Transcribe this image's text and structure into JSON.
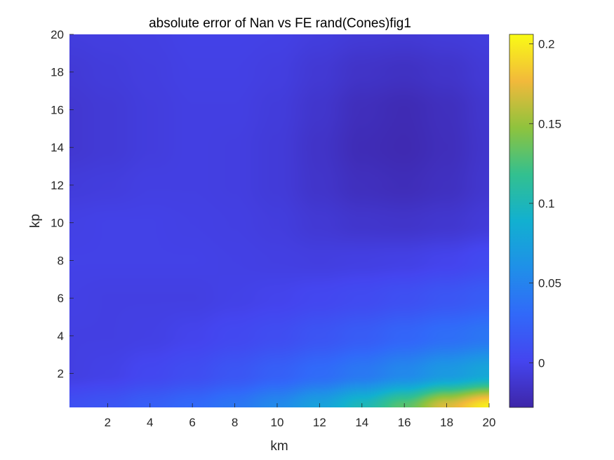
{
  "chart_data": {
    "type": "heatmap",
    "title": "absolute error of Nan vs FE rand(Cones)fig1",
    "xlabel": "km",
    "ylabel": "kp",
    "xlim": [
      0.2,
      20
    ],
    "ylim": [
      0.2,
      20
    ],
    "x_ticks": [
      "2",
      "4",
      "6",
      "8",
      "10",
      "12",
      "14",
      "16",
      "18",
      "20"
    ],
    "y_ticks": [
      "2",
      "4",
      "6",
      "8",
      "10",
      "12",
      "14",
      "16",
      "18",
      "20"
    ],
    "grid": false,
    "colormap": "parula",
    "colorbar": {
      "clim": [
        -0.028,
        0.206
      ],
      "ticks": [
        "0",
        "0.05",
        "0.1",
        "0.15",
        "0.2"
      ],
      "tick_values": [
        0,
        0.05,
        0.1,
        0.15,
        0.2
      ]
    },
    "x": [
      0.2,
      2,
      4,
      6,
      8,
      10,
      12,
      14,
      16,
      18,
      20
    ],
    "y": [
      0.2,
      2,
      4,
      6,
      8,
      10,
      12,
      14,
      16,
      18,
      20
    ],
    "z": [
      [
        0.01,
        0.014,
        0.022,
        0.03,
        0.04,
        0.055,
        0.075,
        0.1,
        0.13,
        0.17,
        0.2
      ],
      [
        -0.004,
        -0.002,
        0.003,
        0.008,
        0.015,
        0.023,
        0.032,
        0.042,
        0.054,
        0.068,
        0.08
      ],
      [
        -0.004,
        -0.004,
        -0.003,
        0.0,
        0.004,
        0.008,
        0.014,
        0.02,
        0.027,
        0.034,
        0.04
      ],
      [
        -0.003,
        -0.004,
        -0.004,
        -0.004,
        -0.002,
        0.0,
        0.003,
        0.006,
        0.01,
        0.015,
        0.02
      ],
      [
        -0.002,
        -0.002,
        -0.002,
        -0.002,
        -0.003,
        -0.004,
        -0.005,
        -0.004,
        -0.003,
        0.0,
        0.005
      ],
      [
        -0.003,
        -0.002,
        -0.002,
        -0.003,
        -0.004,
        -0.006,
        -0.01,
        -0.013,
        -0.014,
        -0.012,
        -0.008
      ],
      [
        -0.007,
        -0.006,
        -0.004,
        -0.004,
        -0.005,
        -0.008,
        -0.014,
        -0.019,
        -0.021,
        -0.018,
        -0.012
      ],
      [
        -0.011,
        -0.009,
        -0.006,
        -0.004,
        -0.005,
        -0.008,
        -0.015,
        -0.022,
        -0.024,
        -0.02,
        -0.013
      ],
      [
        -0.011,
        -0.009,
        -0.006,
        -0.004,
        -0.004,
        -0.007,
        -0.013,
        -0.02,
        -0.023,
        -0.019,
        -0.012
      ],
      [
        -0.009,
        -0.007,
        -0.005,
        -0.003,
        -0.003,
        -0.005,
        -0.01,
        -0.015,
        -0.017,
        -0.014,
        -0.009
      ],
      [
        -0.006,
        -0.005,
        -0.004,
        -0.002,
        -0.002,
        -0.003,
        -0.006,
        -0.009,
        -0.01,
        -0.008,
        -0.006
      ]
    ]
  }
}
